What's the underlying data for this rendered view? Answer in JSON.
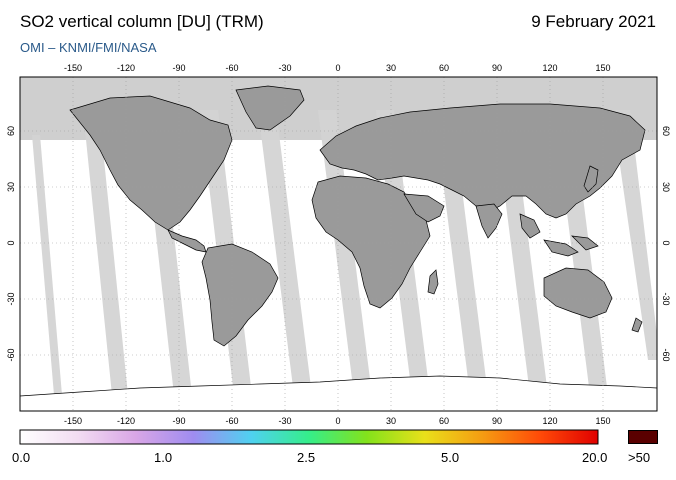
{
  "header": {
    "title": "SO2 vertical column [DU] (TRM)",
    "date": "9 February 2021",
    "credit": "OMI  –  KNMI/FMI/NASA"
  },
  "map": {
    "lon_ticks": [
      "-150",
      "-120",
      "-90",
      "-60",
      "-30",
      "0",
      "30",
      "60",
      "90",
      "120",
      "150"
    ],
    "lat_ticks": [
      "60",
      "30",
      "0",
      "-30",
      "-60"
    ],
    "colors": {
      "ocean": "#ffffff",
      "land": "#9a9a9a",
      "no_data": "#cfcfcf",
      "swath": "#f6f5fb",
      "grid": "#9e9e9e"
    }
  },
  "colorbar": {
    "labels": [
      "0.0",
      "1.0",
      "2.5",
      "5.0",
      "20.0",
      ">50"
    ],
    "stops": [
      "#ffffff",
      "#f2dcf2",
      "#d9a6e6",
      "#9f8cf0",
      "#4fd1f0",
      "#35ee8a",
      "#83e21b",
      "#e9e01a",
      "#f59c12",
      "#ff4a08",
      "#e00000"
    ],
    "overflow_color": "#5a0000"
  }
}
